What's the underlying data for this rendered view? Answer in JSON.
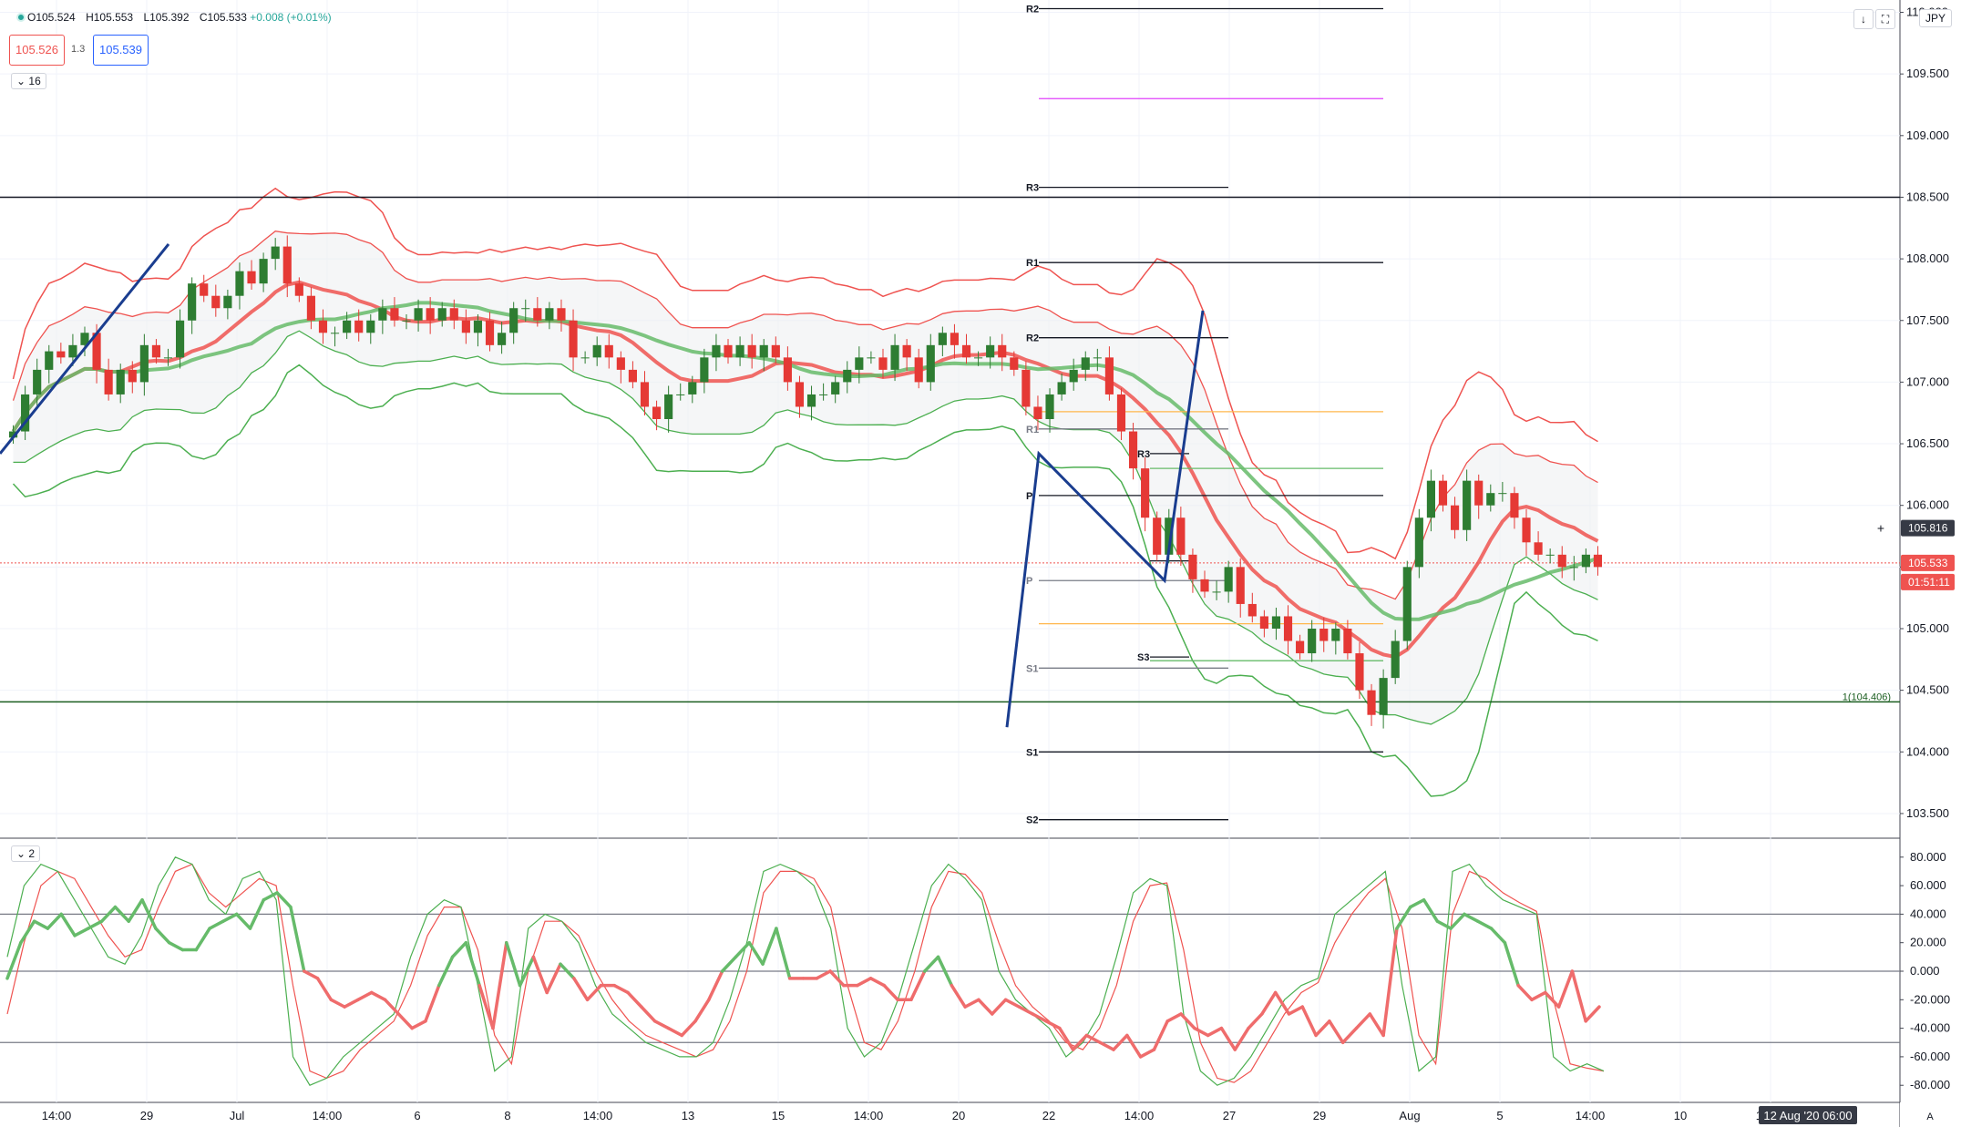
{
  "header": {
    "open": "O105.524",
    "high": "H105.553",
    "low": "L105.392",
    "close": "C105.533",
    "change": "+0.008 (+0.01%)",
    "bid": "105.526",
    "spread": "1.3",
    "ask": "105.539",
    "main_collapse": "16",
    "osc_collapse": "2",
    "currency": "JPY",
    "btn_down": "↓",
    "btn_max": "⛶",
    "auto_label": "A"
  },
  "colors": {
    "bull": "#26a69a",
    "bear": "#ef5350",
    "bb_upper": "#ef5350",
    "bb_lower": "#4caf50",
    "trend": "#1a3d8f"
  },
  "chart_data": {
    "type": "candlestick",
    "price_axis": {
      "ticks": [
        "110.000",
        "109.500",
        "109.000",
        "108.500",
        "108.000",
        "107.500",
        "107.000",
        "106.500",
        "106.000",
        "105.500",
        "105.000",
        "104.500",
        "104.000",
        "103.500"
      ],
      "range": [
        103.3,
        110.1
      ]
    },
    "time_axis": {
      "labels": [
        "14:00",
        "29",
        "Jul",
        "14:00",
        "6",
        "8",
        "14:00",
        "13",
        "15",
        "14:00",
        "20",
        "22",
        "14:00",
        "27",
        "29",
        "Aug",
        "5",
        "14:00",
        "10",
        "14:00"
      ],
      "crosshair_label": "12 Aug '20  06:00"
    },
    "price_badges": [
      {
        "label": "105.816",
        "value": 105.816,
        "style": "cross"
      },
      {
        "label": "105.533",
        "value": 105.533,
        "style": "last"
      },
      {
        "label": "01:51:11",
        "value": 105.46,
        "style": "countdown"
      }
    ],
    "horizontal_lines": [
      {
        "value": 108.5,
        "color": "#131722"
      },
      {
        "value": 104.406,
        "color": "#1b5e20",
        "label": "1(104.406)"
      }
    ],
    "pivot_levels": [
      {
        "label": "R2",
        "value": 110.03,
        "from": 1140,
        "to": 1518,
        "color": "#131722"
      },
      {
        "label": "",
        "value": 109.3,
        "from": 1140,
        "to": 1518,
        "color": "#e040fb"
      },
      {
        "label": "R3",
        "value": 108.58,
        "from": 1140,
        "to": 1348,
        "color": "#131722"
      },
      {
        "label": "R1",
        "value": 107.97,
        "from": 1140,
        "to": 1518,
        "color": "#131722"
      },
      {
        "label": "R2",
        "value": 107.36,
        "from": 1140,
        "to": 1348,
        "color": "#131722"
      },
      {
        "label": "",
        "value": 106.76,
        "from": 1140,
        "to": 1518,
        "color": "#ffb74d"
      },
      {
        "label": "R1",
        "value": 106.62,
        "from": 1140,
        "to": 1348,
        "color": "#787b86"
      },
      {
        "label": "R3",
        "value": 106.42,
        "from": 1262,
        "to": 1305,
        "color": "#131722"
      },
      {
        "label": "",
        "value": 106.3,
        "from": 1262,
        "to": 1518,
        "color": "#66bb6a"
      },
      {
        "label": "P",
        "value": 106.08,
        "from": 1140,
        "to": 1518,
        "color": "#131722"
      },
      {
        "label": "",
        "value": 105.55,
        "from": 1262,
        "to": 1305,
        "color": "#131722"
      },
      {
        "label": "P",
        "value": 105.39,
        "from": 1140,
        "to": 1348,
        "color": "#787b86"
      },
      {
        "label": "",
        "value": 105.04,
        "from": 1140,
        "to": 1518,
        "color": "#ffb74d"
      },
      {
        "label": "S3",
        "value": 104.77,
        "from": 1262,
        "to": 1305,
        "color": "#131722"
      },
      {
        "label": "",
        "value": 104.74,
        "from": 1262,
        "to": 1518,
        "color": "#66bb6a"
      },
      {
        "label": "S1",
        "value": 104.68,
        "from": 1140,
        "to": 1348,
        "color": "#787b86"
      },
      {
        "label": "S1",
        "value": 104.0,
        "from": 1140,
        "to": 1518,
        "color": "#131722"
      },
      {
        "label": "S2",
        "value": 103.45,
        "from": 1140,
        "to": 1348,
        "color": "#131722"
      }
    ],
    "trendlines": [
      {
        "points": [
          [
            0,
            106.42
          ],
          [
            185,
            108.12
          ]
        ]
      },
      {
        "points": [
          [
            1105,
            104.2
          ],
          [
            1140,
            106.42
          ],
          [
            1180,
            106.12
          ],
          [
            1278,
            105.39
          ],
          [
            1320,
            107.58
          ]
        ]
      }
    ],
    "candles_close": [
      106.6,
      106.9,
      107.1,
      107.25,
      107.2,
      107.3,
      107.4,
      107.1,
      106.9,
      107.1,
      107.0,
      107.3,
      107.2,
      107.2,
      107.5,
      107.8,
      107.7,
      107.6,
      107.7,
      107.9,
      107.8,
      108.0,
      108.1,
      107.8,
      107.7,
      107.5,
      107.4,
      107.4,
      107.5,
      107.4,
      107.5,
      107.6,
      107.5,
      107.5,
      107.6,
      107.5,
      107.6,
      107.5,
      107.4,
      107.5,
      107.3,
      107.4,
      107.6,
      107.6,
      107.5,
      107.6,
      107.5,
      107.2,
      107.2,
      107.3,
      107.2,
      107.1,
      107.0,
      106.8,
      106.7,
      106.9,
      106.9,
      107.0,
      107.2,
      107.3,
      107.2,
      107.3,
      107.2,
      107.3,
      107.2,
      107.0,
      106.8,
      106.9,
      106.9,
      107.0,
      107.1,
      107.2,
      107.2,
      107.1,
      107.3,
      107.2,
      107.0,
      107.3,
      107.4,
      107.3,
      107.2,
      107.2,
      107.3,
      107.2,
      107.1,
      106.8,
      106.7,
      106.9,
      107.0,
      107.1,
      107.2,
      107.2,
      106.9,
      106.6,
      106.3,
      105.9,
      105.6,
      105.9,
      105.6,
      105.4,
      105.3,
      105.3,
      105.5,
      105.2,
      105.1,
      105.0,
      105.1,
      104.9,
      104.8,
      105.0,
      104.9,
      105.0,
      104.8,
      104.5,
      104.3,
      104.6,
      104.9,
      105.5,
      105.9,
      106.2,
      106.0,
      105.8,
      106.2,
      106.0,
      106.1,
      106.1,
      105.9,
      105.7,
      105.6,
      105.6,
      105.5,
      105.5,
      105.6,
      105.5
    ],
    "oscillator": {
      "ticks": [
        "80.000",
        "60.000",
        "40.000",
        "20.000",
        "0.000",
        "-20.000",
        "-40.000",
        "-60.000",
        "-80.000"
      ],
      "range": [
        -92,
        92
      ],
      "levels": [
        40,
        0,
        -50
      ],
      "main": [
        -5,
        20,
        35,
        30,
        40,
        25,
        30,
        35,
        45,
        35,
        50,
        30,
        20,
        15,
        15,
        30,
        35,
        40,
        30,
        50,
        55,
        45,
        0,
        -5,
        -20,
        -25,
        -20,
        -15,
        -20,
        -30,
        -40,
        -35,
        -10,
        10,
        20,
        -10,
        -40,
        20,
        -10,
        10,
        -15,
        5,
        -5,
        -20,
        -10,
        -10,
        -15,
        -25,
        -35,
        -40,
        -45,
        -35,
        -20,
        0,
        10,
        20,
        5,
        30,
        -5,
        -5,
        -5,
        0,
        -10,
        -10,
        -5,
        -10,
        -20,
        -20,
        0,
        10,
        -10,
        -25,
        -20,
        -30,
        -20,
        -25,
        -30,
        -35,
        -40,
        -55,
        -45,
        -50,
        -55,
        -45,
        -60,
        -55,
        -35,
        -30,
        -40,
        -45,
        -40,
        -55,
        -40,
        -30,
        -15,
        -30,
        -25,
        -45,
        -35,
        -50,
        -40,
        -30,
        -45,
        30,
        45,
        50,
        35,
        30,
        40,
        35,
        30,
        20,
        -10,
        -20,
        -15,
        -25,
        0,
        -35,
        -25
      ],
      "fast": [
        10,
        60,
        75,
        70,
        50,
        30,
        10,
        5,
        25,
        60,
        80,
        75,
        50,
        40,
        65,
        70,
        50,
        -60,
        -80,
        -75,
        -60,
        -50,
        -40,
        -30,
        10,
        40,
        50,
        45,
        -10,
        -70,
        -60,
        30,
        40,
        35,
        20,
        -10,
        -30,
        -40,
        -50,
        -55,
        -60,
        -60,
        -50,
        -20,
        20,
        70,
        75,
        70,
        60,
        30,
        -40,
        -60,
        -50,
        -20,
        20,
        60,
        75,
        65,
        50,
        0,
        -20,
        -30,
        -40,
        -60,
        -50,
        -30,
        10,
        55,
        65,
        60,
        -30,
        -70,
        -80,
        -75,
        -60,
        -40,
        -20,
        -10,
        -5,
        40,
        50,
        60,
        70,
        -10,
        -70,
        -60,
        70,
        75,
        60,
        50,
        45,
        40,
        -60,
        -70,
        -65,
        -70
      ],
      "slow": [
        -30,
        20,
        60,
        70,
        65,
        45,
        25,
        10,
        15,
        45,
        70,
        75,
        55,
        45,
        55,
        65,
        60,
        -10,
        -70,
        -75,
        -70,
        -55,
        -45,
        -35,
        -10,
        25,
        45,
        45,
        15,
        -45,
        -65,
        0,
        35,
        35,
        25,
        0,
        -20,
        -35,
        -45,
        -50,
        -55,
        -60,
        -55,
        -35,
        0,
        55,
        70,
        70,
        65,
        45,
        -10,
        -50,
        -55,
        -35,
        0,
        45,
        70,
        68,
        55,
        20,
        -10,
        -25,
        -35,
        -50,
        -55,
        -40,
        -10,
        35,
        60,
        62,
        15,
        -50,
        -75,
        -78,
        -70,
        -50,
        -30,
        -15,
        -8,
        20,
        40,
        55,
        65,
        30,
        -45,
        -65,
        40,
        70,
        65,
        55,
        48,
        42,
        -20,
        -65,
        -68,
        -70
      ]
    }
  }
}
